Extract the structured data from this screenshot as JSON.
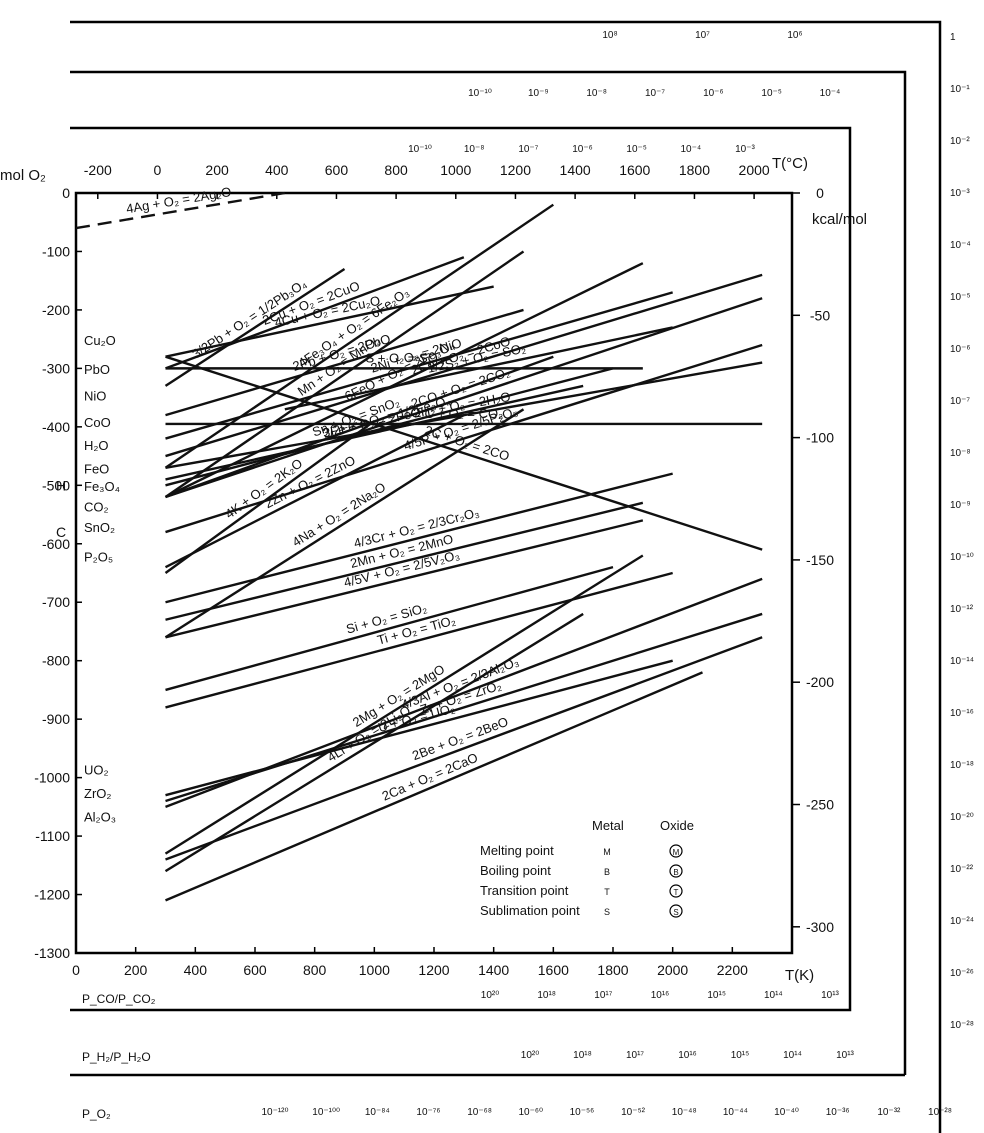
{
  "chart_data": {
    "type": "line",
    "title": "",
    "top_axis_label": "T(°C)",
    "bottom_axis_label": "T(K)",
    "left_axis_label": "mol O₂",
    "right_axis_label": "kcal/mol",
    "x_ticks_K": [
      "0",
      "200",
      "400",
      "600",
      "800",
      "1000",
      "1200",
      "1400",
      "1600",
      "1800",
      "2000",
      "2200"
    ],
    "x_ticks_C": [
      "-200",
      "0",
      "200",
      "400",
      "600",
      "800",
      "1000",
      "1200",
      "1400",
      "1600",
      "1800",
      "2000"
    ],
    "y_ticks_left": [
      "0",
      "-100",
      "-200",
      "-300",
      "-400",
      "-500",
      "-600",
      "-700",
      "-800",
      "-900",
      "-1000",
      "-1100",
      "-1200",
      "-1300"
    ],
    "y_ticks_right": [
      "0",
      "-50",
      "-100",
      "-150",
      "-200",
      "-250",
      "-300"
    ],
    "xlim_K": [
      0,
      2400
    ],
    "ylim": [
      -1300,
      0
    ],
    "y_unit_left": "kJ/mol O2",
    "y_unit_right": "kcal/mol",
    "reactions": [
      {
        "label": "4Ag + O₂ = 2Ag₂O",
        "x": [
          0,
          700
        ],
        "y": [
          -60,
          0
        ],
        "dashed": true
      },
      {
        "label": "Mn + O₂ = MnO₂",
        "x": [
          300,
          1500
        ],
        "y": [
          -520,
          -100
        ],
        "dashed": false
      },
      {
        "label": "3/2Pb + O₂ = 1/2Pb₃O₄",
        "x": [
          300,
          900
        ],
        "y": [
          -330,
          -130
        ],
        "dashed": false
      },
      {
        "label": "2Cu + O₂ = 2CuO",
        "x": [
          300,
          1300
        ],
        "y": [
          -300,
          -110
        ],
        "dashed": false
      },
      {
        "label": "S + O₂ = SO₂",
        "x": [
          300,
          1900
        ],
        "y": [
          -300,
          -300
        ],
        "dashed": false
      },
      {
        "label": "1/2S₂ + O₂ = SO₂",
        "x": [
          700,
          2000
        ],
        "y": [
          -370,
          -230
        ],
        "dashed": false
      },
      {
        "label": "4Cu + O₂ = 2Cu₂O",
        "x": [
          300,
          1400
        ],
        "y": [
          -280,
          -160
        ],
        "dashed": false
      },
      {
        "label": "2Pb + O₂ = 2PbO",
        "x": [
          300,
          1500
        ],
        "y": [
          -380,
          -200
        ],
        "dashed": false
      },
      {
        "label": "2Ni + O₂ = 2NiO",
        "x": [
          300,
          2000
        ],
        "y": [
          -420,
          -170
        ],
        "dashed": false
      },
      {
        "label": "6FeO + O₂ = 2Fe₃O₄",
        "x": [
          300,
          1900
        ],
        "y": [
          -520,
          -120
        ],
        "dashed": false
      },
      {
        "label": "4Fe₃O₄ + O₂ = 6Fe₂O₃",
        "x": [
          300,
          1600
        ],
        "y": [
          -470,
          -20
        ],
        "dashed": false
      },
      {
        "label": "2Co + O₂ = 2CoO",
        "x": [
          300,
          2300
        ],
        "y": [
          -450,
          -140
        ],
        "dashed": false
      },
      {
        "label": "2CO + O₂ = 2CO₂",
        "x": [
          300,
          2300
        ],
        "y": [
          -520,
          -180
        ],
        "dashed": false
      },
      {
        "label": "4/5P + O₂ = 2/5P₂O₅",
        "x": [
          300,
          2300
        ],
        "y": [
          -580,
          -260
        ],
        "dashed": false
      },
      {
        "label": "2H₂ + O₂ = 2H₂O",
        "x": [
          300,
          2300
        ],
        "y": [
          -470,
          -290
        ],
        "dashed": false
      },
      {
        "label": "3/2Fe + O₂ = 1/2Fe₃O₄",
        "x": [
          300,
          1800
        ],
        "y": [
          -500,
          -300
        ],
        "dashed": false
      },
      {
        "label": "Sn + O₂ = SnO₂",
        "x": [
          300,
          1600
        ],
        "y": [
          -520,
          -280
        ],
        "dashed": false
      },
      {
        "label": "2Fe + O₂ = 2FeO",
        "x": [
          300,
          1700
        ],
        "y": [
          -490,
          -330
        ],
        "dashed": false
      },
      {
        "label": "C + O₂ = CO₂",
        "x": [
          300,
          2300
        ],
        "y": [
          -395,
          -395
        ],
        "dashed": false
      },
      {
        "label": "4/3Cr + O₂ = 2/3Cr₂O₃",
        "x": [
          300,
          2000
        ],
        "y": [
          -700,
          -480
        ],
        "dashed": false
      },
      {
        "label": "2C + O₂ = 2CO",
        "x": [
          300,
          2300
        ],
        "y": [
          -280,
          -610
        ],
        "dashed": false
      },
      {
        "label": "4K + O₂ = 2K₂O",
        "x": [
          300,
          1000
        ],
        "y": [
          -650,
          -390
        ],
        "dashed": false
      },
      {
        "label": "4Na + O₂ = 2Na₂O",
        "x": [
          300,
          1500
        ],
        "y": [
          -760,
          -370
        ],
        "dashed": false
      },
      {
        "label": "2Zn + O₂ = 2ZnO",
        "x": [
          300,
          1300
        ],
        "y": [
          -640,
          -380
        ],
        "dashed": false
      },
      {
        "label": "2Mn + O₂ = 2MnO",
        "x": [
          300,
          1900
        ],
        "y": [
          -730,
          -530
        ],
        "dashed": false
      },
      {
        "label": "4/5V + O₂ = 2/5V₂O₃",
        "x": [
          300,
          1900
        ],
        "y": [
          -760,
          -560
        ],
        "dashed": false
      },
      {
        "label": "Si + O₂ = SiO₂",
        "x": [
          300,
          1800
        ],
        "y": [
          -850,
          -640
        ],
        "dashed": false
      },
      {
        "label": "Ti + O₂ = TiO₂",
        "x": [
          300,
          2000
        ],
        "y": [
          -880,
          -650
        ],
        "dashed": false
      },
      {
        "label": "4/3Al + O₂ = 2/3Al₂O₃",
        "x": [
          300,
          2300
        ],
        "y": [
          -1050,
          -660
        ],
        "dashed": false
      },
      {
        "label": "Zr + O₂ = ZrO₂",
        "x": [
          300,
          2300
        ],
        "y": [
          -1040,
          -720
        ],
        "dashed": false
      },
      {
        "label": "U + O₂ = UO₂",
        "x": [
          300,
          2000
        ],
        "y": [
          -1030,
          -800
        ],
        "dashed": false
      },
      {
        "label": "2Be + O₂ = 2BeO",
        "x": [
          300,
          2300
        ],
        "y": [
          -1140,
          -760
        ],
        "dashed": false
      },
      {
        "label": "2Mg + O₂ = 2MgO",
        "x": [
          300,
          1900
        ],
        "y": [
          -1130,
          -620
        ],
        "dashed": false
      },
      {
        "label": "4Li + O₂ = 2Li₂O",
        "x": [
          300,
          1700
        ],
        "y": [
          -1160,
          -720
        ],
        "dashed": false
      },
      {
        "label": "2Ca + O₂ = 2CaO",
        "x": [
          300,
          2100
        ],
        "y": [
          -1210,
          -820
        ],
        "dashed": false
      }
    ],
    "left_labels": [
      "Cu₂O",
      "PbO",
      "NiO",
      "CoO",
      "H₂O",
      "FeO",
      "Fe₃O₄",
      "CO₂",
      "SnO₂",
      "P₂O₅",
      "UO₂",
      "ZrO₂",
      "Al₂O₃"
    ],
    "left_markers": [
      "H",
      "C"
    ],
    "right_scale_values": [
      "1",
      "10⁻¹",
      "10⁻²",
      "10⁻³",
      "10⁻⁴",
      "10⁻⁵",
      "10⁻⁶",
      "10⁻⁷",
      "10⁻⁸",
      "10⁻⁹",
      "10⁻¹⁰",
      "10⁻¹²",
      "10⁻¹⁴",
      "10⁻¹⁶",
      "10⁻¹⁸",
      "10⁻²⁰",
      "10⁻²²",
      "10⁻²⁴",
      "10⁻²⁶",
      "10⁻²⁸"
    ],
    "pco_scale": [
      "10²⁰",
      "10¹⁸",
      "10¹⁷",
      "10¹⁶",
      "10¹⁵",
      "10¹⁴",
      "10¹³"
    ],
    "ph2_scale": [
      "10²⁰",
      "10¹⁸",
      "10¹⁷",
      "10¹⁶",
      "10¹⁵",
      "10¹⁴",
      "10¹³"
    ],
    "po2_scale": [
      "10⁻¹²⁰",
      "10⁻¹⁰⁰",
      "10⁻⁸⁴",
      "10⁻⁷⁶",
      "10⁻⁶⁸",
      "10⁻⁶⁰",
      "10⁻⁵⁶",
      "10⁻⁵²",
      "10⁻⁴⁸",
      "10⁻⁴⁴",
      "10⁻⁴⁰",
      "10⁻³⁶",
      "10⁻³²",
      "10⁻²⁸"
    ],
    "top_scale_1": [
      "10⁸",
      "10⁷",
      "10⁶"
    ],
    "top_scale_2": [
      "10⁻¹⁰",
      "10⁻⁹",
      "10⁻⁸",
      "10⁻⁷",
      "10⁻⁶",
      "10⁻⁵",
      "10⁻⁴"
    ],
    "top_scale_3": [
      "10⁻¹⁰",
      "10⁻⁸",
      "10⁻⁷",
      "10⁻⁶",
      "10⁻⁵",
      "10⁻⁴",
      "10⁻³"
    ],
    "bottom_row_labels": [
      "P_CO/P_CO₂",
      "P_H₂/P_H₂O",
      "P_O₂"
    ],
    "legend": {
      "col1": "Metal",
      "col2": "Oxide",
      "rows": [
        {
          "label": "Melting point",
          "metal": "M",
          "oxide": "M"
        },
        {
          "label": "Boiling point",
          "metal": "B",
          "oxide": "B"
        },
        {
          "label": "Transition point",
          "metal": "T",
          "oxide": "T"
        },
        {
          "label": "Sublimation point",
          "metal": "S",
          "oxide": "S"
        }
      ]
    }
  }
}
